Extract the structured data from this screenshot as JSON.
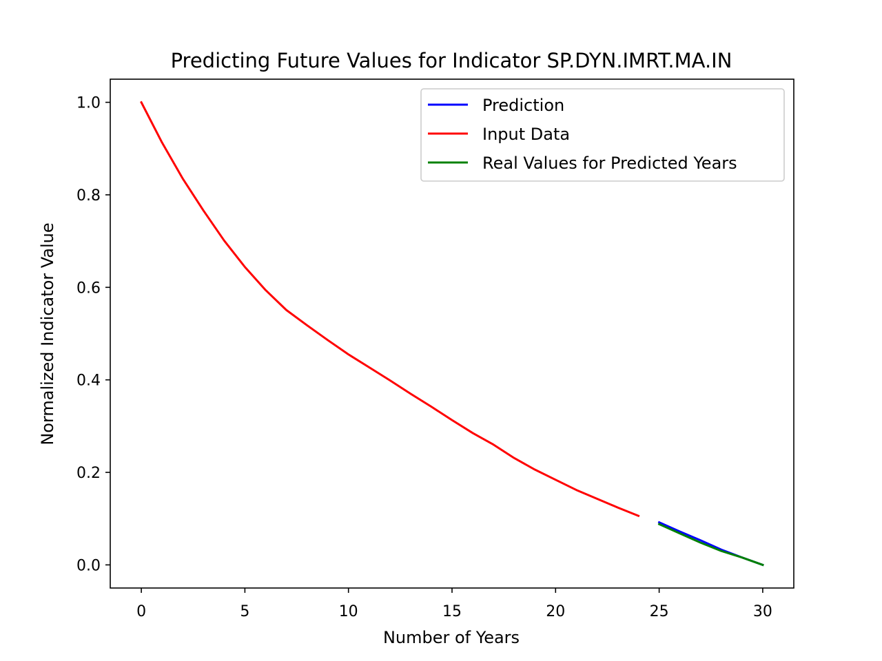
{
  "chart_data": {
    "type": "line",
    "title": "Predicting Future Values for Indicator SP.DYN.IMRT.MA.IN",
    "xlabel": "Number of Years",
    "ylabel": "Normalized Indicator Value",
    "xlim": [
      -1.5,
      31.5
    ],
    "ylim": [
      -0.05,
      1.05
    ],
    "xticks": [
      0,
      5,
      10,
      15,
      20,
      25,
      30
    ],
    "yticks": [
      0.0,
      0.2,
      0.4,
      0.6,
      0.8,
      1.0
    ],
    "xtick_labels": [
      "0",
      "5",
      "10",
      "15",
      "20",
      "25",
      "30"
    ],
    "ytick_labels": [
      "0.0",
      "0.2",
      "0.4",
      "0.6",
      "0.8",
      "1.0"
    ],
    "grid": false,
    "legend_position": "top-right",
    "series": [
      {
        "name": "Prediction",
        "color": "#0000ff",
        "x": [
          25,
          26,
          27,
          28,
          29,
          30
        ],
        "y": [
          0.092,
          0.072,
          0.053,
          0.033,
          0.016,
          0.0
        ]
      },
      {
        "name": "Input Data",
        "color": "#ff0000",
        "x": [
          0,
          1,
          2,
          3,
          4,
          5,
          6,
          7,
          8,
          9,
          10,
          11,
          12,
          13,
          14,
          15,
          16,
          17,
          18,
          19,
          20,
          21,
          22,
          23,
          24
        ],
        "y": [
          1.0,
          0.913,
          0.835,
          0.766,
          0.701,
          0.644,
          0.594,
          0.551,
          0.518,
          0.486,
          0.455,
          0.427,
          0.399,
          0.37,
          0.342,
          0.313,
          0.285,
          0.26,
          0.231,
          0.206,
          0.184,
          0.162,
          0.143,
          0.124,
          0.106
        ]
      },
      {
        "name": "Real Values for Predicted Years",
        "color": "#008000",
        "x": [
          25,
          26,
          27,
          28,
          29,
          30
        ],
        "y": [
          0.088,
          0.068,
          0.048,
          0.03,
          0.016,
          0.0
        ]
      }
    ],
    "legend_order": [
      "Prediction",
      "Input Data",
      "Real Values for Predicted Years"
    ]
  }
}
